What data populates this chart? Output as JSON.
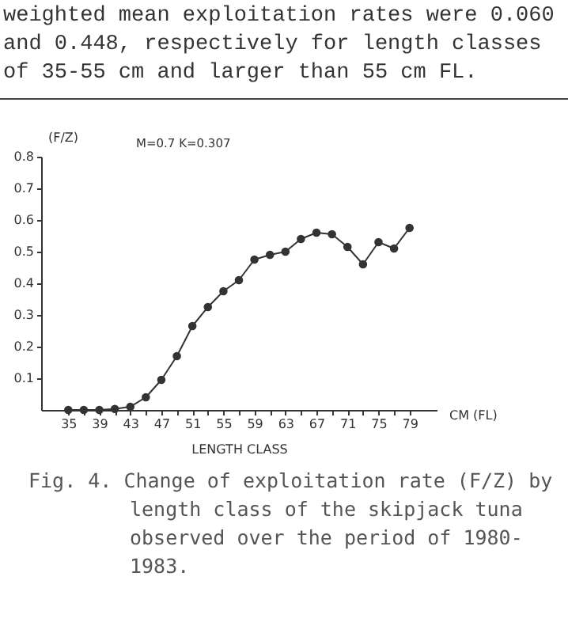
{
  "chart_data": {
    "type": "line",
    "xlabel": "LENGTH CLASS",
    "ylabel": "(F/Z)",
    "annotations": [
      "weighted mean exploitation rates were 0.060 and 0.448, respectively for length classes of 35-55 cm and larger than 55 cm FL.",
      "M=0.7  K=0.307",
      "CM (FL)",
      "Fig. 4. Change of exploitation rate (F/Z) by length class of the skipjack tuna observed over the period of 1980-1983."
    ],
    "x": [
      35,
      37,
      39,
      41,
      43,
      45,
      47,
      49,
      51,
      53,
      55,
      57,
      59,
      61,
      63,
      65,
      67,
      69,
      71,
      73,
      75,
      77,
      79
    ],
    "series": [
      {
        "color": "#333333",
        "values": [
          0,
          0,
          0,
          0.003,
          0.01,
          0.04,
          0.095,
          0.17,
          0.265,
          0.325,
          0.375,
          0.41,
          0.475,
          0.49,
          0.5,
          0.54,
          0.56,
          0.555,
          0.515,
          0.46,
          0.53,
          0.51,
          0.575
        ]
      }
    ],
    "xlim": [
      31.5,
      82.5
    ],
    "xticks": [
      35,
      {
        "value": 37,
        "label": null
      },
      39,
      {
        "value": 41,
        "label": null
      },
      43,
      {
        "value": 45,
        "label": null
      },
      47,
      {
        "value": 49,
        "label": null
      },
      51,
      {
        "value": 53,
        "label": null
      },
      55,
      {
        "value": 57,
        "label": null
      },
      59,
      {
        "value": 61,
        "label": null
      },
      63,
      {
        "value": 65,
        "label": null
      },
      67,
      {
        "value": 69,
        "label": null
      },
      71,
      {
        "value": 73,
        "label": null
      },
      75,
      {
        "value": 77,
        "label": null
      },
      79
    ],
    "ylim": [
      0,
      0.8
    ],
    "yticks": [
      0.1,
      0.2,
      0.3,
      0.4,
      0.5,
      0.6,
      0.7,
      0.8
    ],
    "grid": false,
    "marker": "circle",
    "line_style": "solid"
  }
}
